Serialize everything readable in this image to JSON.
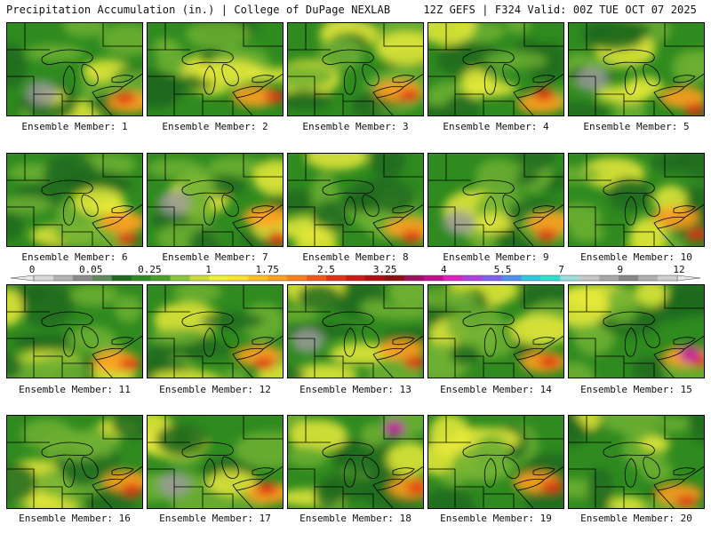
{
  "header": {
    "left": "Precipitation Accumulation (in.) | College of DuPage NEXLAB",
    "right": "12Z GEFS | F324 Valid: 00Z TUE OCT 07 2025"
  },
  "caption_prefix": "Ensemble Member: ",
  "members": [
    {
      "label": "Ensemble Member: 1"
    },
    {
      "label": "Ensemble Member: 2"
    },
    {
      "label": "Ensemble Member: 3"
    },
    {
      "label": "Ensemble Member: 4"
    },
    {
      "label": "Ensemble Member: 5"
    },
    {
      "label": "Ensemble Member: 6"
    },
    {
      "label": "Ensemble Member: 7"
    },
    {
      "label": "Ensemble Member: 8"
    },
    {
      "label": "Ensemble Member: 9"
    },
    {
      "label": "Ensemble Member: 10"
    },
    {
      "label": "Ensemble Member: 11"
    },
    {
      "label": "Ensemble Member: 12"
    },
    {
      "label": "Ensemble Member: 13"
    },
    {
      "label": "Ensemble Member: 14"
    },
    {
      "label": "Ensemble Member: 15"
    },
    {
      "label": "Ensemble Member: 16"
    },
    {
      "label": "Ensemble Member: 17"
    },
    {
      "label": "Ensemble Member: 18"
    },
    {
      "label": "Ensemble Member: 19"
    },
    {
      "label": "Ensemble Member: 20"
    }
  ],
  "colorbar": {
    "tick_labels": [
      "0",
      "0.05",
      "0.25",
      "1",
      "1.75",
      "2.5",
      "3.25",
      "4",
      "5.5",
      "7",
      "9",
      "12"
    ],
    "colors": [
      "#d8d8d8",
      "#b4b4b4",
      "#8c8c8c",
      "#5e8c5e",
      "#1f6a1f",
      "#2e8b22",
      "#4aa02a",
      "#8cc43a",
      "#ccdc3c",
      "#f0f03c",
      "#ffe135",
      "#ffc126",
      "#ffa020",
      "#ff7f1a",
      "#f05a18",
      "#e03214",
      "#c81c14",
      "#b01010",
      "#901010",
      "#a01060",
      "#c01090",
      "#e020c0",
      "#b040e0",
      "#8060f0",
      "#5090f0",
      "#30c8e0",
      "#30e0d0",
      "#9ae0e0",
      "#c8c8c8",
      "#a8a8a8",
      "#888888",
      "#b0b0b0",
      "#d0d0d0"
    ]
  },
  "colors": {
    "dark_green": "#1f6a1f",
    "green": "#2f8a1f",
    "light_green": "#6fb033",
    "yellow": "#e8ea3a",
    "orange": "#ff9f1f",
    "red": "#e02a14",
    "magenta": "#c01aa0",
    "gray": "#9a9a9a"
  }
}
